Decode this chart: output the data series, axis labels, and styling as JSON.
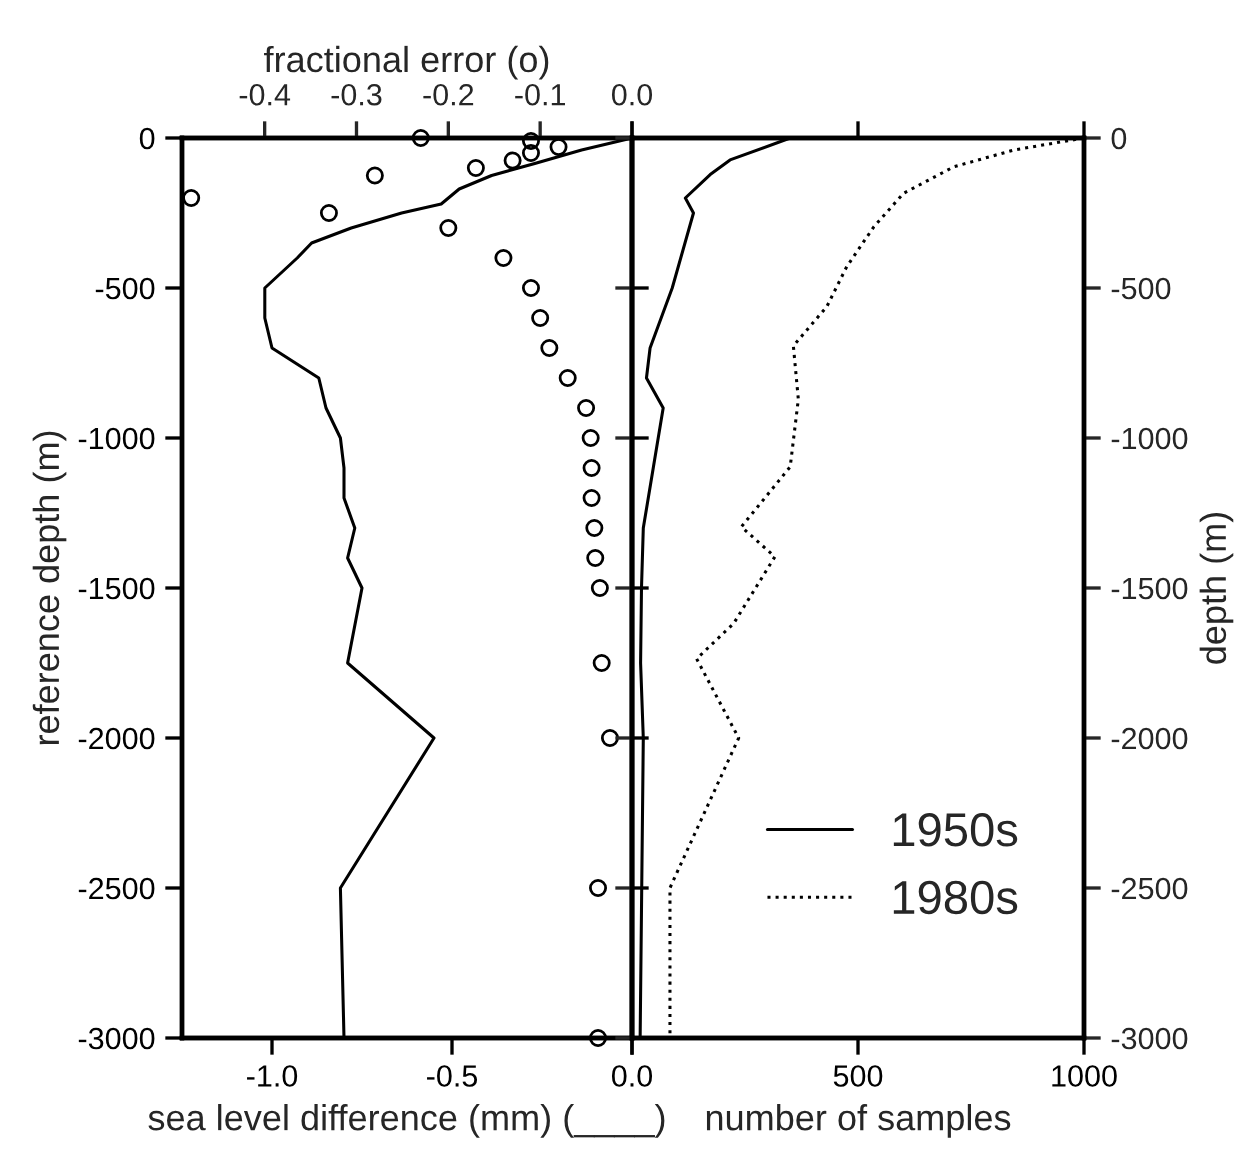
{
  "chart_data": [
    {
      "type": "line",
      "xlabel": "sea level difference (mm) (____)",
      "ylabel": "reference depth (m)",
      "x2label": "fractional error (o)",
      "xlim": [
        -1.25,
        0
      ],
      "xticks": [
        {
          "value": -1.0,
          "label": "-1.0"
        },
        {
          "value": -0.5,
          "label": "-0.5"
        },
        {
          "value": 0.0,
          "label": "0.0"
        }
      ],
      "x2lim": [
        -0.49,
        0
      ],
      "x2ticks": [
        {
          "value": -0.4,
          "label": "-0.4"
        },
        {
          "value": -0.3,
          "label": "-0.3"
        },
        {
          "value": -0.2,
          "label": "-0.2"
        },
        {
          "value": -0.1,
          "label": "-0.1"
        },
        {
          "value": 0.0,
          "label": "0.0"
        }
      ],
      "ylim": [
        -3000,
        0
      ],
      "yticks": [
        0,
        -500,
        -1000,
        -1500,
        -2000,
        -2500,
        -3000
      ],
      "series": [
        {
          "type": "line",
          "color": "#000000",
          "line_style": "solid",
          "x": [
            0,
            -0.14,
            -0.27,
            -0.39,
            -0.48,
            -0.53,
            -0.64,
            -0.78,
            -0.89,
            -0.93,
            -1.02,
            -1.02,
            -1.0,
            -0.87,
            -0.85,
            -0.81,
            -0.8,
            -0.8,
            -0.77,
            -0.79,
            -0.75,
            -0.79,
            -0.55,
            -0.81,
            -0.8
          ],
          "values": [
            0,
            -40,
            -85,
            -125,
            -170,
            -220,
            -250,
            -300,
            -350,
            -400,
            -500,
            -600,
            -700,
            -800,
            -900,
            -1000,
            -1100,
            -1200,
            -1300,
            -1400,
            -1500,
            -1750,
            -2000,
            -2500,
            -3000
          ]
        },
        {
          "type": "scatter",
          "axis": "x2",
          "marker": "circle",
          "color": "#000000",
          "x": [
            -0.23,
            -0.11,
            -0.08,
            -0.11,
            -0.13,
            -0.17,
            -0.28,
            -0.48,
            -0.33,
            -0.2,
            -0.14,
            -0.11,
            -0.1,
            -0.09,
            -0.07,
            -0.05,
            -0.045,
            -0.044,
            -0.044,
            -0.041,
            -0.04,
            -0.035,
            -0.033,
            -0.024,
            -0.037,
            -0.037
          ],
          "values": [
            0,
            -10,
            -30,
            -50,
            -75,
            -100,
            -125,
            -200,
            -250,
            -300,
            -400,
            -500,
            -600,
            -700,
            -800,
            -900,
            -1000,
            -1100,
            -1200,
            -1300,
            -1400,
            -1500,
            -1750,
            -2000,
            -2500,
            -3000
          ]
        }
      ]
    },
    {
      "type": "line",
      "xlabel": "number of samples",
      "y2label": "depth (m)",
      "legend": "bottom right",
      "xlim": [
        0,
        1000
      ],
      "xticks": [
        {
          "value": 0,
          "label": null
        },
        500,
        1000
      ],
      "y2lim": [
        -3000,
        0
      ],
      "y2ticks": [
        0,
        -500,
        -1000,
        -1500,
        -2000,
        -2500,
        -3000
      ],
      "series": [
        {
          "name": "1950s",
          "axis": "y2",
          "color": "#000000",
          "line_style": "solid",
          "x": [
            350,
            217,
            173,
            118,
            136,
            89,
            40,
            32,
            69,
            47,
            25,
            21,
            19,
            25,
            18
          ],
          "values": [
            0,
            -73,
            -122,
            -200,
            -250,
            -500,
            -700,
            -800,
            -900,
            -1100,
            -1300,
            -1500,
            -1750,
            -2000,
            -3000
          ]
        },
        {
          "name": "1980s",
          "axis": "y2",
          "color": "#000000",
          "line_style": "dotted",
          "x": [
            1000,
            845,
            712,
            601,
            535,
            475,
            431,
            357,
            368,
            350,
            242,
            316,
            225,
            143,
            236,
            92,
            84,
            84
          ],
          "values": [
            0,
            -40,
            -96,
            -184,
            -296,
            -429,
            -562,
            -693,
            -871,
            -1096,
            -1296,
            -1396,
            -1618,
            -1736,
            -2000,
            -2473,
            -2500,
            -3000
          ]
        }
      ]
    }
  ]
}
